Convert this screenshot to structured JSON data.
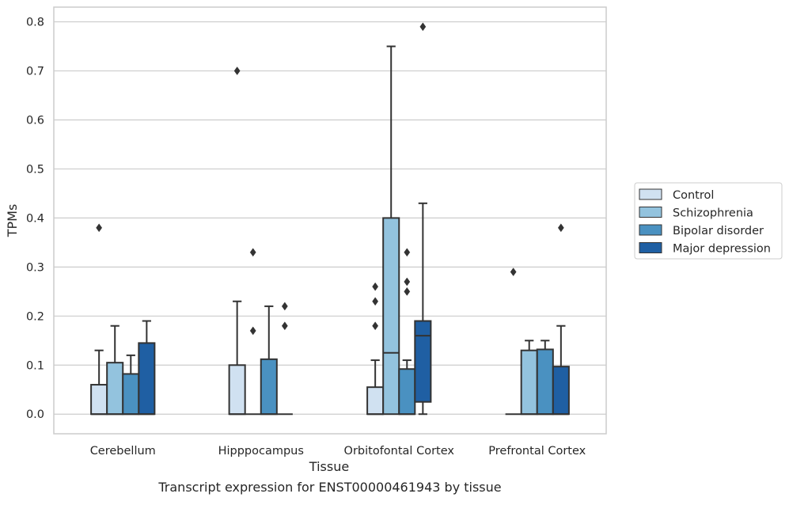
{
  "caption": "Transcript expression for ENST00000461943 by tissue",
  "chart_data": {
    "type": "box",
    "xlabel": "Tissue",
    "ylabel": "TPMs",
    "ylim": [
      -0.04,
      0.83
    ],
    "yticks": [
      "0.0",
      "0.1",
      "0.2",
      "0.3",
      "0.4",
      "0.5",
      "0.6",
      "0.7",
      "0.8"
    ],
    "ytick_values": [
      0.0,
      0.1,
      0.2,
      0.3,
      0.4,
      0.5,
      0.6,
      0.7,
      0.8
    ],
    "grid": "horizontal",
    "legend_position": "right",
    "categories": [
      "Cerebellum",
      "Hipppocampus",
      "Orbitofontal Cortex",
      "Prefrontal Cortex"
    ],
    "colors": {
      "Control": "#d0e1f1",
      "Schizophrenia": "#93c3de",
      "Bipolar disorder": "#4a91c1",
      "Major depression": "#1f5fa3",
      "box_edge": "#333333",
      "grid": "#cccccc"
    },
    "series": [
      {
        "name": "Control",
        "boxes": [
          {
            "whislo": 0.0,
            "q1": 0.0,
            "med": 0.0,
            "q3": 0.06,
            "whishi": 0.13,
            "fliers": [
              0.38
            ]
          },
          {
            "whislo": 0.0,
            "q1": 0.0,
            "med": 0.0,
            "q3": 0.1,
            "whishi": 0.23,
            "fliers": [
              0.7
            ]
          },
          {
            "whislo": 0.0,
            "q1": 0.0,
            "med": 0.0,
            "q3": 0.055,
            "whishi": 0.11,
            "fliers": [
              0.18,
              0.23,
              0.26
            ]
          },
          {
            "whislo": 0.0,
            "q1": 0.0,
            "med": 0.0,
            "q3": 0.0,
            "whishi": 0.0,
            "fliers": [
              0.29
            ]
          }
        ]
      },
      {
        "name": "Schizophrenia",
        "boxes": [
          {
            "whislo": 0.0,
            "q1": 0.0,
            "med": 0.0,
            "q3": 0.105,
            "whishi": 0.18,
            "fliers": []
          },
          {
            "whislo": 0.0,
            "q1": 0.0,
            "med": 0.0,
            "q3": 0.0,
            "whishi": 0.0,
            "fliers": [
              0.17,
              0.33
            ]
          },
          {
            "whislo": 0.0,
            "q1": 0.0,
            "med": 0.125,
            "q3": 0.4,
            "whishi": 0.75,
            "fliers": []
          },
          {
            "whislo": 0.0,
            "q1": 0.0,
            "med": 0.0,
            "q3": 0.13,
            "whishi": 0.15,
            "fliers": []
          }
        ]
      },
      {
        "name": "Bipolar disorder",
        "boxes": [
          {
            "whislo": 0.0,
            "q1": 0.0,
            "med": 0.0,
            "q3": 0.082,
            "whishi": 0.12,
            "fliers": []
          },
          {
            "whislo": 0.0,
            "q1": 0.0,
            "med": 0.0,
            "q3": 0.112,
            "whishi": 0.22,
            "fliers": []
          },
          {
            "whislo": 0.0,
            "q1": 0.0,
            "med": 0.0,
            "q3": 0.092,
            "whishi": 0.11,
            "fliers": [
              0.25,
              0.27,
              0.33
            ]
          },
          {
            "whislo": 0.0,
            "q1": 0.0,
            "med": 0.0,
            "q3": 0.132,
            "whishi": 0.15,
            "fliers": []
          }
        ]
      },
      {
        "name": "Major depression",
        "boxes": [
          {
            "whislo": 0.0,
            "q1": 0.0,
            "med": 0.0,
            "q3": 0.145,
            "whishi": 0.19,
            "fliers": []
          },
          {
            "whislo": 0.0,
            "q1": 0.0,
            "med": 0.0,
            "q3": 0.0,
            "whishi": 0.0,
            "fliers": [
              0.18,
              0.22
            ]
          },
          {
            "whislo": 0.0,
            "q1": 0.025,
            "med": 0.16,
            "q3": 0.19,
            "whishi": 0.43,
            "fliers": [
              0.79
            ]
          },
          {
            "whislo": 0.0,
            "q1": 0.0,
            "med": 0.0,
            "q3": 0.097,
            "whishi": 0.18,
            "fliers": [
              0.38
            ]
          }
        ]
      }
    ]
  }
}
